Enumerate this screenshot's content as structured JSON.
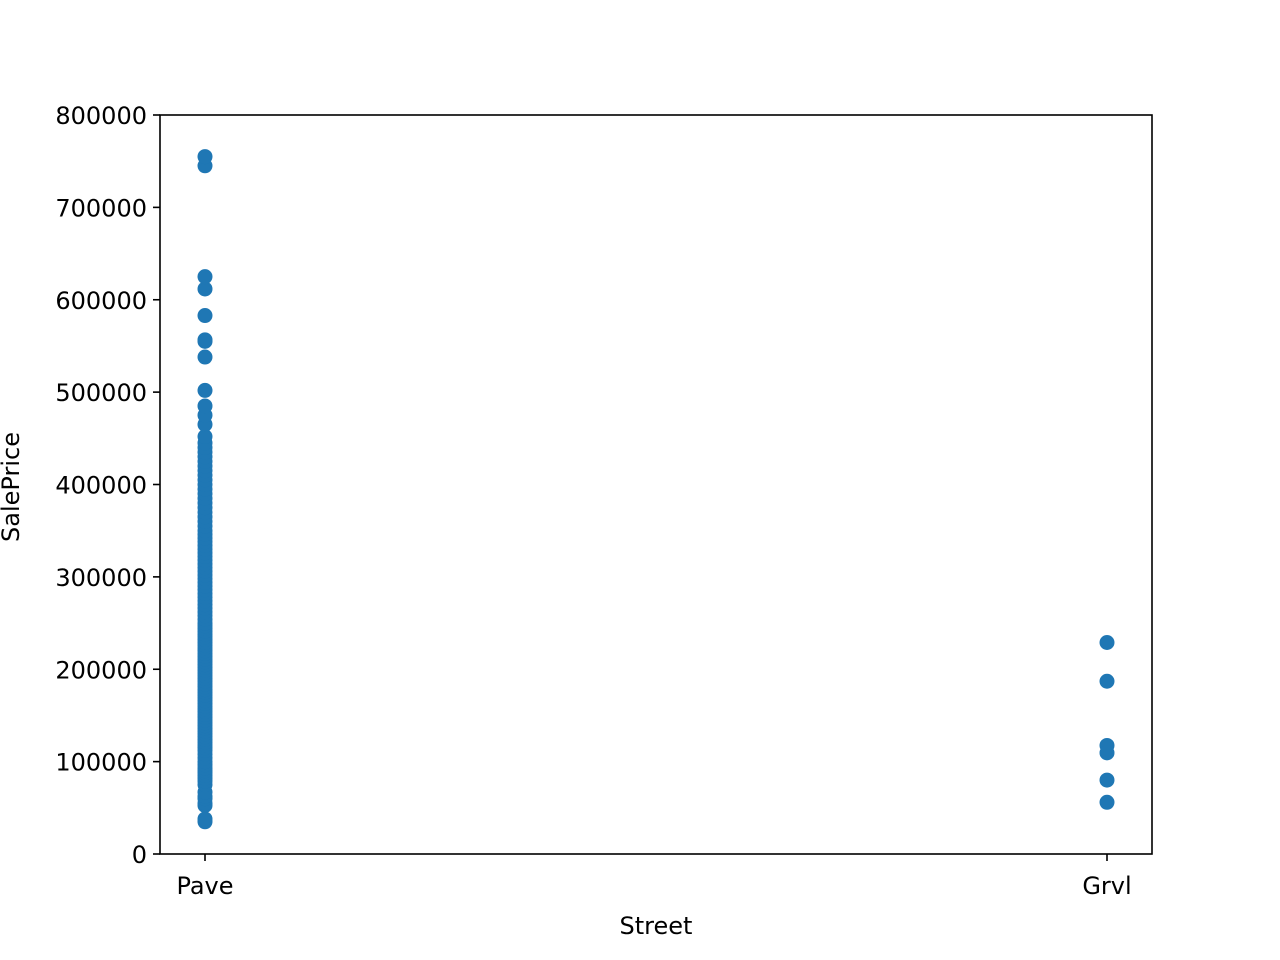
{
  "chart_data": {
    "type": "scatter",
    "title": "",
    "xlabel": "Street",
    "ylabel": "SalePrice",
    "categories": [
      "Pave",
      "Grvl"
    ],
    "ylim": [
      0,
      800000
    ],
    "yticks": [
      0,
      100000,
      200000,
      300000,
      400000,
      500000,
      600000,
      700000,
      800000
    ],
    "ytick_labels": [
      "0",
      "100000",
      "200000",
      "300000",
      "400000",
      "500000",
      "600000",
      "700000",
      "800000"
    ],
    "grid": false,
    "legend": "none",
    "marker_color": "#1f77b4",
    "series": [
      {
        "category": "Pave",
        "values": [
          34900,
          37900,
          52500,
          55000,
          60000,
          62383,
          67000,
          75000,
          79000,
          82000,
          85000,
          88000,
          90000,
          93000,
          96500,
          100000,
          104000,
          108000,
          112000,
          115000,
          118000,
          121000,
          124000,
          127000,
          130000,
          133000,
          136000,
          139000,
          142000,
          145000,
          148000,
          151000,
          154000,
          157000,
          160000,
          163000,
          166000,
          169000,
          172000,
          175000,
          178000,
          181000,
          184000,
          187000,
          190000,
          193000,
          196000,
          199000,
          202000,
          205000,
          208000,
          211000,
          214000,
          217000,
          220000,
          223000,
          226000,
          229000,
          232000,
          235000,
          238000,
          241000,
          244000,
          247000,
          250000,
          254000,
          258000,
          262000,
          266000,
          270000,
          274000,
          278000,
          282000,
          286000,
          290000,
          294000,
          298000,
          302000,
          306000,
          310000,
          314000,
          318000,
          322000,
          326000,
          330000,
          334000,
          338000,
          342000,
          346000,
          350000,
          355000,
          360000,
          365000,
          370000,
          375000,
          380000,
          385000,
          390000,
          395000,
          400000,
          405000,
          410000,
          415000,
          420000,
          425000,
          430000,
          435000,
          440000,
          445000,
          451950,
          465000,
          475000,
          485000,
          501837,
          538000,
          555000,
          556581,
          582933,
          611657,
          625000,
          745000,
          755000
        ]
      },
      {
        "category": "Grvl",
        "values": [
          228950,
          187000,
          117500,
          109500,
          80000,
          55993
        ]
      }
    ]
  }
}
